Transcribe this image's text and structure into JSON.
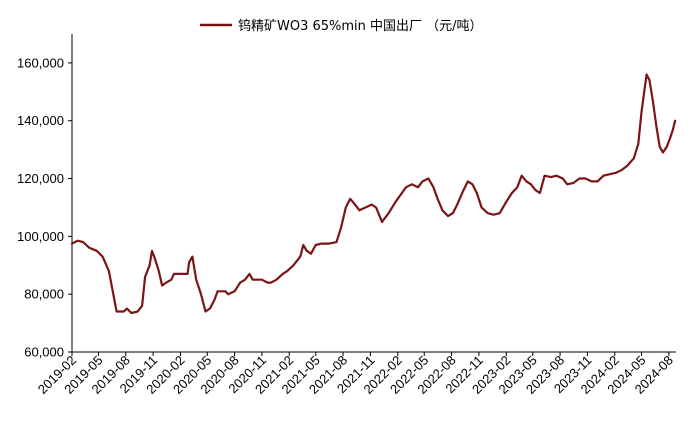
{
  "chart_data": {
    "type": "line",
    "title": "",
    "xlabel": "",
    "ylabel": "",
    "legend": {
      "position": "top-center",
      "entries": [
        "钨精矿WO3 65%min 中国出厂 （元/吨）"
      ]
    },
    "grid": false,
    "ylim": [
      60000,
      170000
    ],
    "y_ticks": [
      60000,
      80000,
      100000,
      120000,
      140000,
      160000
    ],
    "y_tick_labels": [
      "60,000",
      "80,000",
      "100,000",
      "120,000",
      "140,000",
      "160,000"
    ],
    "x_tick_labels": [
      "2019-02",
      "2019-05",
      "2019-08",
      "2019-11",
      "2020-02",
      "2020-05",
      "2020-08",
      "2020-11",
      "2021-02",
      "2021-05",
      "2021-08",
      "2021-11",
      "2022-02",
      "2022-05",
      "2022-08",
      "2022-11",
      "2023-02",
      "2023-05",
      "2023-08",
      "2023-11",
      "2024-02",
      "2024-05",
      "2024-08"
    ],
    "series": [
      {
        "name": "钨精矿WO3 65%min 中国出厂 （元/吨）",
        "color": "#7b1416",
        "points": [
          [
            "2019-02-01",
            97500
          ],
          [
            "2019-02-20",
            98500
          ],
          [
            "2019-03-10",
            98000
          ],
          [
            "2019-04-01",
            96000
          ],
          [
            "2019-04-25",
            95000
          ],
          [
            "2019-05-15",
            93000
          ],
          [
            "2019-06-05",
            88000
          ],
          [
            "2019-06-20",
            80000
          ],
          [
            "2019-07-01",
            74000
          ],
          [
            "2019-07-25",
            74000
          ],
          [
            "2019-08-05",
            75000
          ],
          [
            "2019-08-20",
            73500
          ],
          [
            "2019-09-10",
            74000
          ],
          [
            "2019-09-25",
            76000
          ],
          [
            "2019-10-05",
            86000
          ],
          [
            "2019-10-20",
            90000
          ],
          [
            "2019-10-28",
            95000
          ],
          [
            "2019-11-08",
            92000
          ],
          [
            "2019-11-20",
            88000
          ],
          [
            "2019-12-01",
            83000
          ],
          [
            "2019-12-15",
            84000
          ],
          [
            "2020-01-01",
            85000
          ],
          [
            "2020-01-10",
            87000
          ],
          [
            "2020-02-01",
            87000
          ],
          [
            "2020-02-25",
            87000
          ],
          [
            "2020-03-01",
            91000
          ],
          [
            "2020-03-12",
            93000
          ],
          [
            "2020-03-25",
            85000
          ],
          [
            "2020-04-10",
            80000
          ],
          [
            "2020-04-25",
            74000
          ],
          [
            "2020-05-10",
            75000
          ],
          [
            "2020-05-25",
            78000
          ],
          [
            "2020-06-05",
            81000
          ],
          [
            "2020-07-01",
            81000
          ],
          [
            "2020-07-10",
            80000
          ],
          [
            "2020-08-01",
            81000
          ],
          [
            "2020-08-20",
            84000
          ],
          [
            "2020-09-05",
            85000
          ],
          [
            "2020-09-20",
            87000
          ],
          [
            "2020-10-01",
            85000
          ],
          [
            "2020-11-01",
            85000
          ],
          [
            "2020-11-20",
            84000
          ],
          [
            "2020-12-01",
            84000
          ],
          [
            "2020-12-20",
            85000
          ],
          [
            "2021-01-10",
            87000
          ],
          [
            "2021-01-25",
            88000
          ],
          [
            "2021-02-15",
            90000
          ],
          [
            "2021-03-10",
            93000
          ],
          [
            "2021-03-20",
            97000
          ],
          [
            "2021-04-01",
            95000
          ],
          [
            "2021-04-15",
            94000
          ],
          [
            "2021-05-01",
            97000
          ],
          [
            "2021-05-20",
            97500
          ],
          [
            "2021-06-15",
            97500
          ],
          [
            "2021-07-10",
            98000
          ],
          [
            "2021-07-25",
            103000
          ],
          [
            "2021-08-10",
            110000
          ],
          [
            "2021-08-25",
            113000
          ],
          [
            "2021-09-10",
            111000
          ],
          [
            "2021-09-25",
            109000
          ],
          [
            "2021-10-15",
            110000
          ],
          [
            "2021-11-05",
            111000
          ],
          [
            "2021-11-20",
            110000
          ],
          [
            "2021-12-10",
            105000
          ],
          [
            "2022-01-01",
            108000
          ],
          [
            "2022-01-25",
            112000
          ],
          [
            "2022-02-15",
            115000
          ],
          [
            "2022-03-01",
            117000
          ],
          [
            "2022-03-20",
            118000
          ],
          [
            "2022-04-10",
            117000
          ],
          [
            "2022-04-25",
            119000
          ],
          [
            "2022-05-15",
            120000
          ],
          [
            "2022-06-01",
            117000
          ],
          [
            "2022-06-15",
            113000
          ],
          [
            "2022-07-01",
            109000
          ],
          [
            "2022-07-20",
            107000
          ],
          [
            "2022-08-05",
            108000
          ],
          [
            "2022-08-20",
            111000
          ],
          [
            "2022-09-10",
            116000
          ],
          [
            "2022-09-25",
            119000
          ],
          [
            "2022-10-10",
            118000
          ],
          [
            "2022-10-25",
            115000
          ],
          [
            "2022-11-10",
            110000
          ],
          [
            "2022-12-01",
            108000
          ],
          [
            "2022-12-20",
            107500
          ],
          [
            "2023-01-10",
            108000
          ],
          [
            "2023-02-01",
            112000
          ],
          [
            "2023-02-20",
            115000
          ],
          [
            "2023-03-10",
            117000
          ],
          [
            "2023-03-25",
            121000
          ],
          [
            "2023-04-10",
            119000
          ],
          [
            "2023-04-25",
            118000
          ],
          [
            "2023-05-10",
            116000
          ],
          [
            "2023-05-25",
            115000
          ],
          [
            "2023-06-10",
            121000
          ],
          [
            "2023-07-01",
            120500
          ],
          [
            "2023-07-20",
            121000
          ],
          [
            "2023-08-10",
            120000
          ],
          [
            "2023-08-25",
            118000
          ],
          [
            "2023-09-15",
            118500
          ],
          [
            "2023-10-05",
            120000
          ],
          [
            "2023-10-25",
            120000
          ],
          [
            "2023-11-15",
            119000
          ],
          [
            "2023-12-05",
            119000
          ],
          [
            "2023-12-25",
            121000
          ],
          [
            "2024-01-15",
            121500
          ],
          [
            "2024-02-05",
            122000
          ],
          [
            "2024-02-25",
            123000
          ],
          [
            "2024-03-15",
            124500
          ],
          [
            "2024-04-05",
            127000
          ],
          [
            "2024-04-20",
            132000
          ],
          [
            "2024-05-01",
            143000
          ],
          [
            "2024-05-10",
            150000
          ],
          [
            "2024-05-18",
            156000
          ],
          [
            "2024-05-28",
            154000
          ],
          [
            "2024-06-08",
            147000
          ],
          [
            "2024-06-20",
            138000
          ],
          [
            "2024-07-01",
            131000
          ],
          [
            "2024-07-12",
            129000
          ],
          [
            "2024-07-25",
            131000
          ],
          [
            "2024-08-05",
            134000
          ],
          [
            "2024-08-15",
            137000
          ],
          [
            "2024-08-22",
            140000
          ]
        ]
      }
    ]
  }
}
